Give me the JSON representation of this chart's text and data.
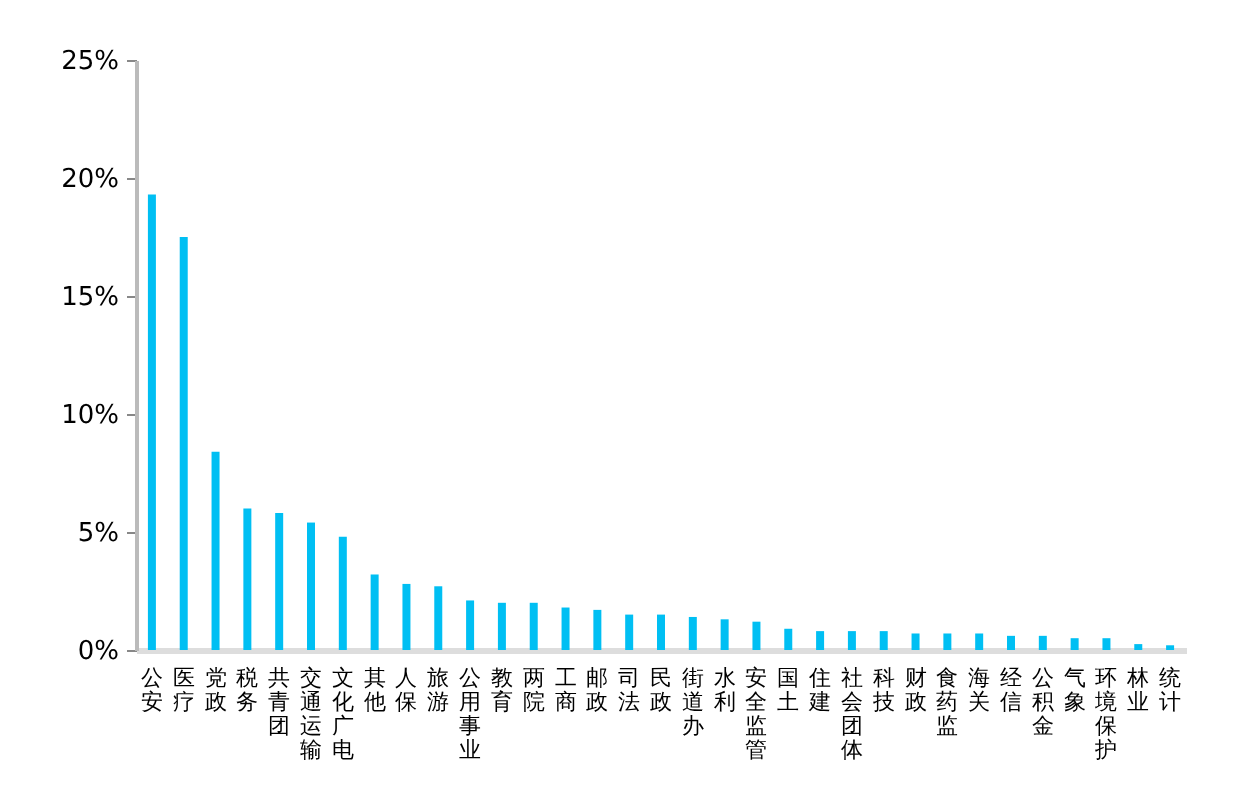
{
  "chart_data": {
    "type": "bar",
    "categories": [
      "公安",
      "医疗",
      "党政",
      "税务",
      "共青团",
      "交通运输",
      "文化广电",
      "其他",
      "人保",
      "旅游",
      "公用事业",
      "教育",
      "两院",
      "工商",
      "邮政",
      "司法",
      "民政",
      "街道办",
      "水利",
      "安全监管",
      "国土",
      "住建",
      "社会团体",
      "科技",
      "财政",
      "食药监",
      "海关",
      "经信",
      "公积金",
      "气象",
      "环境保护",
      "林业",
      "统计"
    ],
    "values": [
      19.3,
      17.5,
      8.4,
      6.0,
      5.8,
      5.4,
      4.8,
      3.2,
      2.8,
      2.7,
      2.1,
      2.0,
      2.0,
      1.8,
      1.7,
      1.5,
      1.5,
      1.4,
      1.3,
      1.2,
      0.9,
      0.8,
      0.8,
      0.8,
      0.7,
      0.7,
      0.7,
      0.6,
      0.6,
      0.5,
      0.5,
      0.25,
      0.2
    ],
    "color": "#00bff3",
    "ylim": [
      0,
      25
    ],
    "yticks": [
      {
        "value": 0,
        "label": "0%"
      },
      {
        "value": 5,
        "label": "5%"
      },
      {
        "value": 10,
        "label": "10%"
      },
      {
        "value": 15,
        "label": "15%"
      },
      {
        "value": 20,
        "label": "20%"
      },
      {
        "value": 25,
        "label": "25%"
      }
    ],
    "grid": false
  }
}
